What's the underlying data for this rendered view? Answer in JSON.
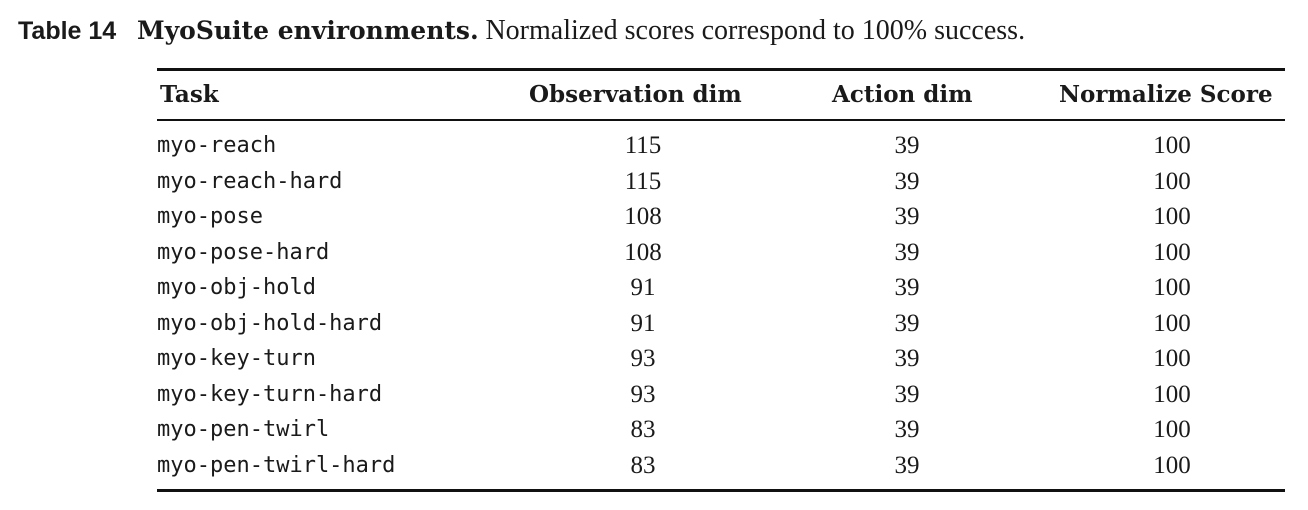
{
  "caption": {
    "label": "Table 14",
    "title": "MyoSuite environments.",
    "text": "Normalized scores correspond to 100% success."
  },
  "table": {
    "headers": [
      "Task",
      "Observation dim",
      "Action dim",
      "Normalize Score"
    ],
    "rows": [
      {
        "task": "myo-reach",
        "obs": "115",
        "act": "39",
        "score": "100"
      },
      {
        "task": "myo-reach-hard",
        "obs": "115",
        "act": "39",
        "score": "100"
      },
      {
        "task": "myo-pose",
        "obs": "108",
        "act": "39",
        "score": "100"
      },
      {
        "task": "myo-pose-hard",
        "obs": "108",
        "act": "39",
        "score": "100"
      },
      {
        "task": "myo-obj-hold",
        "obs": "91",
        "act": "39",
        "score": "100"
      },
      {
        "task": "myo-obj-hold-hard",
        "obs": "91",
        "act": "39",
        "score": "100"
      },
      {
        "task": "myo-key-turn",
        "obs": "93",
        "act": "39",
        "score": "100"
      },
      {
        "task": "myo-key-turn-hard",
        "obs": "93",
        "act": "39",
        "score": "100"
      },
      {
        "task": "myo-pen-twirl",
        "obs": "83",
        "act": "39",
        "score": "100"
      },
      {
        "task": "myo-pen-twirl-hard",
        "obs": "83",
        "act": "39",
        "score": "100"
      }
    ]
  }
}
